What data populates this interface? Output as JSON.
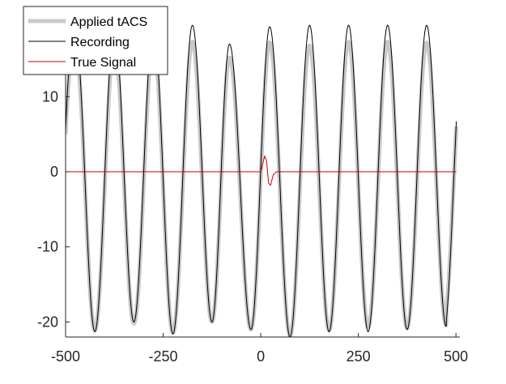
{
  "chart_data": {
    "type": "line",
    "xlim": [
      -500,
      510
    ],
    "ylim": [
      -22,
      22
    ],
    "x_ticks": [
      -500,
      -250,
      0,
      250,
      500
    ],
    "x_tick_labels": [
      "-500",
      "-250",
      "0",
      "250",
      "500"
    ],
    "y_ticks": [
      -20,
      -10,
      0,
      10
    ],
    "y_tick_labels": [
      "-20",
      "-10",
      "0",
      "10"
    ],
    "grid": false,
    "legend_position": "top-left",
    "title": "",
    "xlabel": "",
    "ylabel": "",
    "series": [
      {
        "name": "Applied tACS",
        "color": "#c8c8c8",
        "style": "thick",
        "offset": -2,
        "amplitude": 18,
        "period": 100,
        "phase_at_minus_500": 0.4,
        "peaks": [
          [
            -475,
            16.6
          ],
          [
            -375,
            17.0
          ],
          [
            -275,
            17.3
          ],
          [
            -175,
            17.3
          ],
          [
            -80,
            15.2
          ],
          [
            23,
            17.2
          ],
          [
            125,
            16.8
          ],
          [
            225,
            17.3
          ],
          [
            325,
            17.3
          ],
          [
            425,
            17.2
          ]
        ],
        "troughs": [
          [
            -425,
            -21.1
          ],
          [
            -325,
            -20.2
          ],
          [
            -225,
            -21.4
          ],
          [
            -125,
            -20.0
          ],
          [
            -25,
            -21.0
          ],
          [
            75,
            -21.8
          ],
          [
            175,
            -21.1
          ],
          [
            275,
            -20.7
          ],
          [
            375,
            -20.8
          ],
          [
            475,
            -20.4
          ]
        ]
      },
      {
        "name": "Recording",
        "color": "#000000",
        "style": "thin",
        "offset": -2,
        "amplitude": 19.5,
        "period": 100,
        "phase_at_minus_500": 0.4,
        "peaks": [
          [
            -475,
            18.5
          ],
          [
            -375,
            19.3
          ],
          [
            -275,
            19.5
          ],
          [
            -175,
            19.5
          ],
          [
            -80,
            17.0
          ],
          [
            23,
            19.3
          ],
          [
            125,
            19.5
          ],
          [
            225,
            19.5
          ],
          [
            325,
            19.5
          ],
          [
            425,
            19.5
          ]
        ],
        "troughs": [
          [
            -425,
            -21.3
          ],
          [
            -325,
            -20.0
          ],
          [
            -225,
            -21.6
          ],
          [
            -125,
            -20.0
          ],
          [
            -25,
            -21.0
          ],
          [
            75,
            -22.0
          ],
          [
            175,
            -21.3
          ],
          [
            275,
            -21.3
          ],
          [
            375,
            -21.0
          ],
          [
            475,
            -20.6
          ]
        ]
      },
      {
        "name": "True Signal",
        "color": "#cc0000",
        "style": "thin",
        "baseline": 0,
        "event_points": [
          [
            0,
            0
          ],
          [
            10,
            2.1
          ],
          [
            15,
            1.4
          ],
          [
            20,
            -1.5
          ],
          [
            25,
            -1.8
          ],
          [
            32,
            -0.4
          ],
          [
            40,
            0
          ]
        ]
      }
    ]
  }
}
